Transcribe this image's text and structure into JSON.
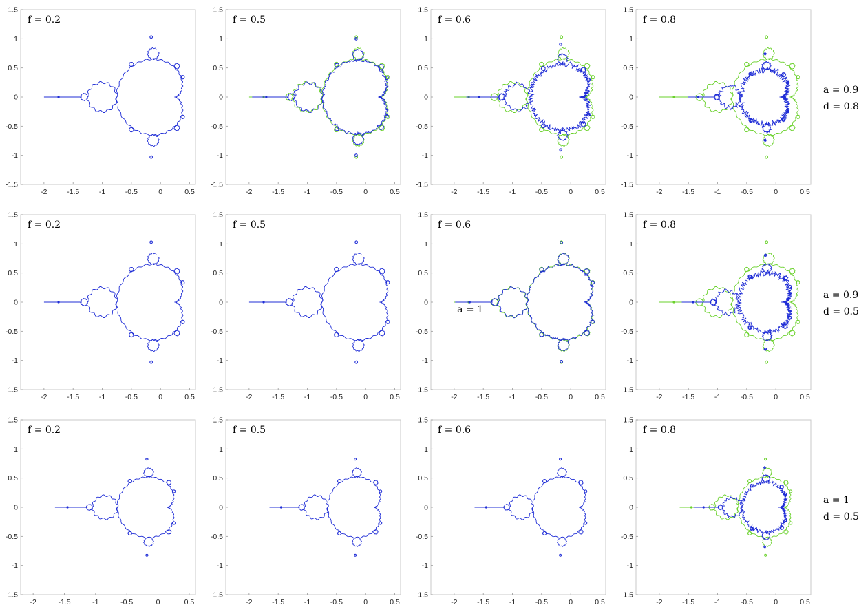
{
  "chart_data": {
    "type": "scatter",
    "description_free": true,
    "colors": {
      "blue": "#1f2dd6",
      "green": "#6ad12b"
    },
    "x_ticks": [
      -2,
      -1.5,
      -1,
      -0.5,
      0,
      0.5
    ],
    "x_tick_labels": [
      "-2",
      "-1.5",
      "-1",
      "-0.5",
      "0",
      "0.5"
    ],
    "y_ticks": [
      -1.5,
      -1,
      -0.5,
      0,
      0.5,
      1,
      1.5
    ],
    "y_tick_labels": [
      "-1.5",
      "-1",
      "-0.5",
      "0",
      "0.5",
      "1",
      "1.5"
    ],
    "rows": [
      {
        "a_label": "a = 0.9",
        "d_label": "d = 0.8",
        "panels": [
          {
            "f_label": "f = 0.2",
            "xlim": [
              -2.4,
              0.6
            ],
            "ylim": [
              -1.5,
              1.5
            ],
            "show_green": false,
            "scale": 1.0,
            "noise": 0.0
          },
          {
            "f_label": "f = 0.5",
            "xlim": [
              -2.4,
              0.6
            ],
            "ylim": [
              -1.5,
              1.5
            ],
            "show_green": true,
            "scale": 0.97,
            "noise": 0.02
          },
          {
            "f_label": "f = 0.6",
            "xlim": [
              -2.4,
              0.6
            ],
            "ylim": [
              -1.5,
              1.5
            ],
            "show_green": true,
            "scale": 0.88,
            "noise": 0.05
          },
          {
            "f_label": "f = 0.8",
            "xlim": [
              -2.4,
              0.6
            ],
            "ylim": [
              -1.5,
              1.5
            ],
            "show_green": true,
            "scale": 0.72,
            "noise": 0.07
          }
        ]
      },
      {
        "a_label": "a = 0.9",
        "d_label": "d = 0.5",
        "panels": [
          {
            "f_label": "f = 0.2",
            "xlim": [
              -2.4,
              0.6
            ],
            "ylim": [
              -1.5,
              1.5
            ],
            "show_green": false,
            "scale": 1.0,
            "noise": 0.0
          },
          {
            "f_label": "f = 0.5",
            "xlim": [
              -2.4,
              0.6
            ],
            "ylim": [
              -1.5,
              1.5
            ],
            "show_green": false,
            "scale": 1.0,
            "noise": 0.0
          },
          {
            "f_label": "f = 0.6",
            "xlim": [
              -2.4,
              0.6
            ],
            "ylim": [
              -1.5,
              1.5
            ],
            "show_green": true,
            "scale": 0.99,
            "noise": 0.015,
            "annotation": "a = 1",
            "annotation_x": -1.95,
            "annotation_y": -0.18
          },
          {
            "f_label": "f = 0.8",
            "xlim": [
              -2.4,
              0.6
            ],
            "ylim": [
              -1.5,
              1.5
            ],
            "show_green": true,
            "scale": 0.78,
            "noise": 0.06
          }
        ]
      },
      {
        "a_label": "a = 1",
        "d_label": "d = 0.5",
        "panels": [
          {
            "f_label": "f = 0.2",
            "xlim": [
              -2.2,
              0.6
            ],
            "ylim": [
              -1.5,
              1.5
            ],
            "show_green": false,
            "scale": 0.8,
            "noise": 0.0
          },
          {
            "f_label": "f = 0.5",
            "xlim": [
              -2.4,
              0.6
            ],
            "ylim": [
              -1.5,
              1.5
            ],
            "show_green": false,
            "scale": 0.8,
            "noise": 0.0
          },
          {
            "f_label": "f = 0.6",
            "xlim": [
              -2.4,
              0.6
            ],
            "ylim": [
              -1.5,
              1.5
            ],
            "show_green": false,
            "scale": 0.8,
            "noise": 0.0
          },
          {
            "f_label": "f = 0.8",
            "xlim": [
              -2.4,
              0.6
            ],
            "ylim": [
              -1.5,
              1.5
            ],
            "show_green": true,
            "scale": 0.66,
            "noise": 0.05,
            "green_scale": 0.8
          }
        ]
      }
    ]
  }
}
